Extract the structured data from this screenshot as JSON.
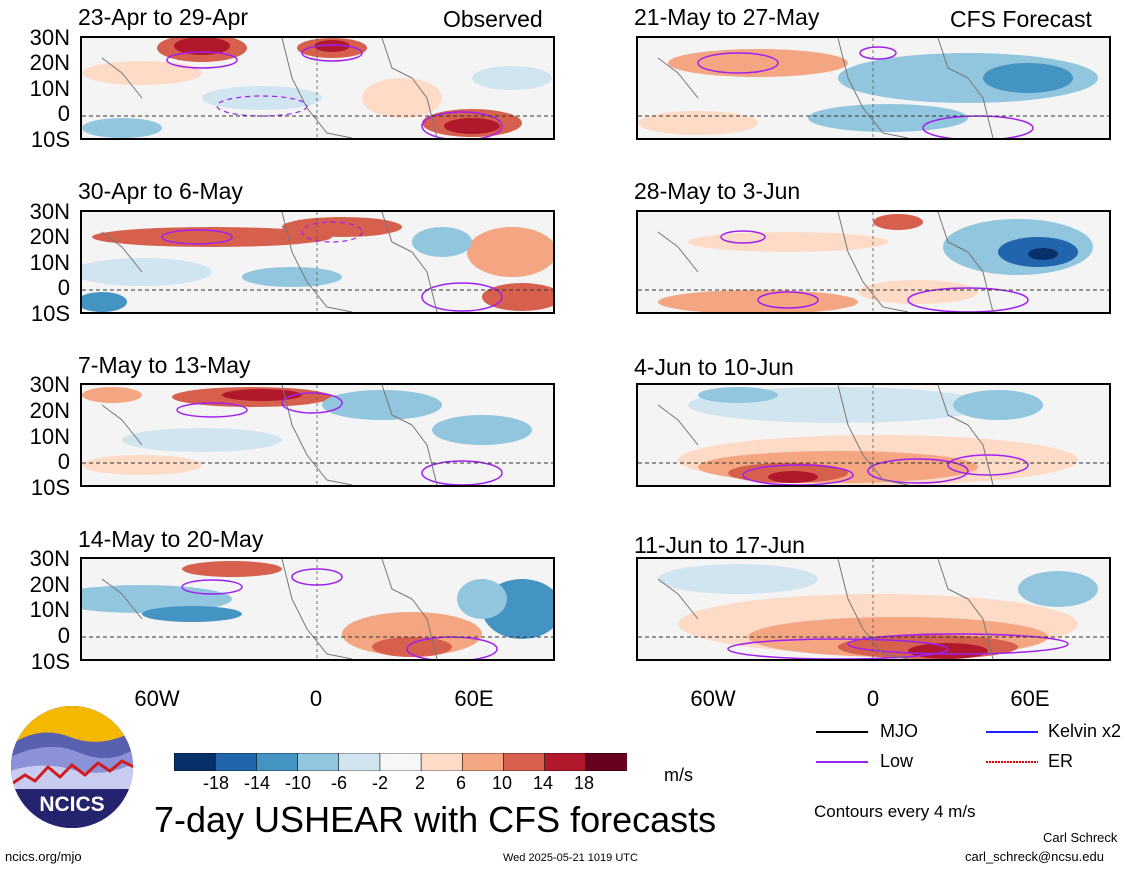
{
  "kind_labels": {
    "observed": "Observed",
    "forecast": "CFS Forecast"
  },
  "panels_left": [
    {
      "title": "23-Apr to 29-Apr"
    },
    {
      "title": "30-Apr to 6-May"
    },
    {
      "title": "7-May to 13-May"
    },
    {
      "title": "14-May to 20-May"
    }
  ],
  "panels_right": [
    {
      "title": "21-May to 27-May"
    },
    {
      "title": "28-May to 3-Jun"
    },
    {
      "title": "4-Jun to 10-Jun"
    },
    {
      "title": "11-Jun to 17-Jun"
    }
  ],
  "lat_labels": [
    "30N",
    "20N",
    "10N",
    "0",
    "10S"
  ],
  "lon_labels": [
    "60W",
    "0",
    "60E"
  ],
  "legend": {
    "mjo": "MJO",
    "kelvin": "Kelvin x2",
    "low": "Low",
    "er": "ER",
    "colors": {
      "mjo": "#000000",
      "kelvin": "#1f1fff",
      "low": "#a020f0",
      "er": "#e00000"
    },
    "contours_note": "Contours every 4 m/s"
  },
  "colorbar": {
    "labels": [
      "-18",
      "-14",
      "-10",
      "-6",
      "-2",
      "2",
      "6",
      "10",
      "14",
      "18"
    ],
    "units": "m/s",
    "colors": [
      "#08306b",
      "#2166ac",
      "#4393c3",
      "#92c5de",
      "#d1e5f0",
      "#f7f7f7",
      "#fddbc7",
      "#f4a582",
      "#d6604d",
      "#b2182b",
      "#67001f"
    ]
  },
  "logo_text": "NCICS",
  "main_title": "7-day USHEAR with CFS forecasts",
  "footer": {
    "left": "ncics.org/mjo",
    "center": "Wed 2025-05-21 1019 UTC",
    "author": "Carl Schreck",
    "email": "carl_schreck@ncsu.edu"
  }
}
